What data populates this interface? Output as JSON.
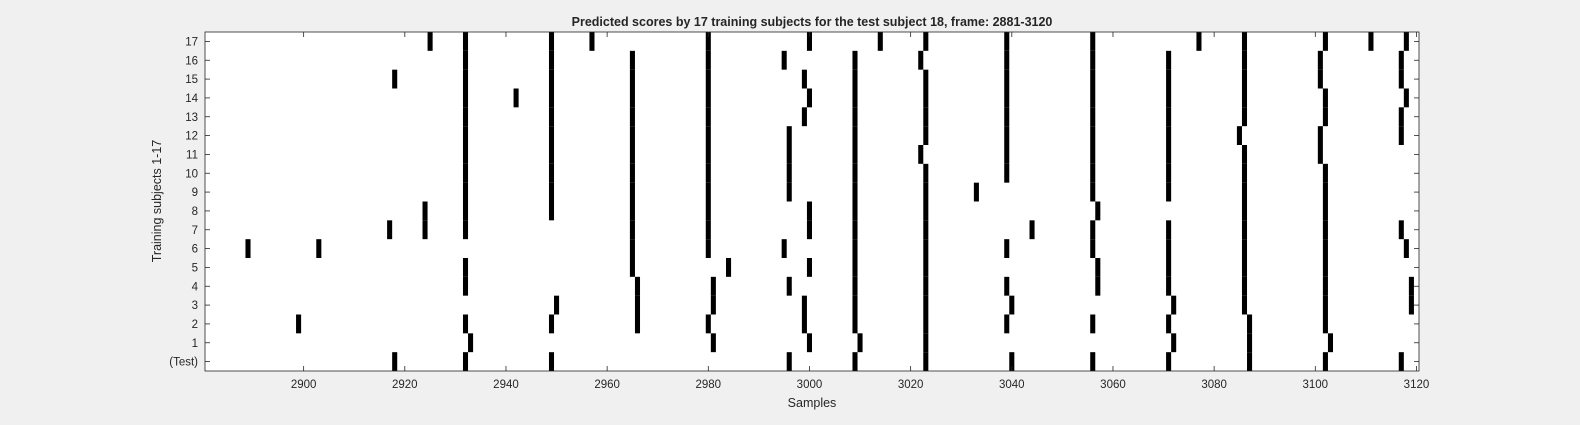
{
  "chart_data": {
    "type": "heatmap",
    "title": "Predicted scores by 17 training subjects for the test subject 18, frame: 2881-3120",
    "xlabel": "Samples",
    "ylabel": "Training subjects 1-17",
    "xlim": [
      2881,
      3120
    ],
    "xticks": [
      2900,
      2920,
      2940,
      2960,
      2980,
      3000,
      3020,
      3040,
      3060,
      3080,
      3100,
      3120
    ],
    "rows": [
      "(Test)",
      "1",
      "2",
      "3",
      "4",
      "5",
      "6",
      "7",
      "8",
      "9",
      "10",
      "11",
      "12",
      "13",
      "14",
      "15",
      "16",
      "17"
    ],
    "marker_color": "#000000",
    "background_color": "#ffffff",
    "marks": [
      {
        "row": "(Test)",
        "x": [
          2918,
          2932,
          2949,
          2996,
          3009,
          3023,
          3040,
          3056,
          3071,
          3087,
          3102,
          3117
        ]
      },
      {
        "row": "1",
        "x": [
          2933,
          2981,
          3000,
          3010,
          3023,
          3072,
          3087,
          3103
        ]
      },
      {
        "row": "2",
        "x": [
          2899,
          2932,
          2949,
          2966,
          2980,
          2999,
          3009,
          3023,
          3039,
          3056,
          3071,
          3087,
          3102
        ]
      },
      {
        "row": "3",
        "x": [
          2950,
          2966,
          2981,
          2999,
          3009,
          3023,
          3040,
          3072,
          3086,
          3102,
          3119
        ]
      },
      {
        "row": "4",
        "x": [
          2932,
          2966,
          2981,
          2996,
          3009,
          3023,
          3039,
          3057,
          3071,
          3086,
          3102,
          3119
        ]
      },
      {
        "row": "5",
        "x": [
          2932,
          2965,
          2984,
          3000,
          3009,
          3023,
          3057,
          3071,
          3086,
          3102
        ]
      },
      {
        "row": "6",
        "x": [
          2889,
          2903,
          2965,
          2980,
          2995,
          3009,
          3023,
          3039,
          3056,
          3071,
          3086,
          3102,
          3118
        ]
      },
      {
        "row": "7",
        "x": [
          2917,
          2924,
          2932,
          2965,
          2980,
          3000,
          3009,
          3023,
          3044,
          3056,
          3071,
          3086,
          3102,
          3117
        ]
      },
      {
        "row": "8",
        "x": [
          2924,
          2932,
          2949,
          2965,
          2980,
          3000,
          3009,
          3023,
          3057,
          3086,
          3102
        ]
      },
      {
        "row": "9",
        "x": [
          2932,
          2949,
          2965,
          2980,
          2996,
          3009,
          3023,
          3033,
          3056,
          3071,
          3086,
          3102
        ]
      },
      {
        "row": "10",
        "x": [
          2932,
          2949,
          2965,
          2980,
          2996,
          3009,
          3023,
          3039,
          3056,
          3071,
          3086,
          3102
        ]
      },
      {
        "row": "11",
        "x": [
          2932,
          2949,
          2965,
          2980,
          2996,
          3009,
          3022,
          3039,
          3056,
          3071,
          3086,
          3101
        ]
      },
      {
        "row": "12",
        "x": [
          2932,
          2949,
          2965,
          2980,
          2996,
          3009,
          3023,
          3039,
          3056,
          3071,
          3085,
          3101,
          3117
        ]
      },
      {
        "row": "13",
        "x": [
          2932,
          2949,
          2965,
          2980,
          2999,
          3009,
          3023,
          3039,
          3056,
          3071,
          3086,
          3102,
          3117
        ]
      },
      {
        "row": "14",
        "x": [
          2942,
          2932,
          2949,
          2965,
          2980,
          3000,
          3009,
          3023,
          3039,
          3056,
          3071,
          3086,
          3102,
          3118
        ]
      },
      {
        "row": "15",
        "x": [
          2918,
          2932,
          2949,
          2965,
          2980,
          2999,
          3009,
          3023,
          3039,
          3056,
          3071,
          3086,
          3101,
          3117
        ]
      },
      {
        "row": "16",
        "x": [
          2932,
          2949,
          2965,
          2980,
          2995,
          3009,
          3022,
          3039,
          3056,
          3071,
          3086,
          3101,
          3117
        ]
      },
      {
        "row": "17",
        "x": [
          2925,
          2932,
          2949,
          2957,
          2980,
          3000,
          3014,
          3023,
          3039,
          3056,
          3077,
          3086,
          3102,
          3111,
          3118
        ]
      }
    ]
  }
}
